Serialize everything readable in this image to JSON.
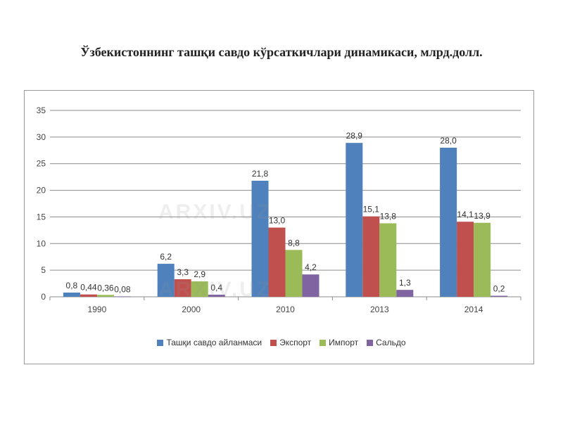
{
  "title": "Ўзбекистоннинг ташқи савдо кўрсаткичлари динамикаси, млрд.долл.",
  "watermark": "ARXIV.UZ",
  "chart_data": {
    "type": "bar",
    "categories": [
      "1990",
      "2000",
      "2010",
      "2013",
      "2014"
    ],
    "series": [
      {
        "name": "Ташқи савдо айланмаси",
        "color": "#4F81BD",
        "values": [
          0.8,
          6.2,
          21.8,
          28.9,
          28.0
        ],
        "labels": [
          "0,8",
          "6,2",
          "21,8",
          "28,9",
          "28,0"
        ]
      },
      {
        "name": "Экспорт",
        "color": "#C0504D",
        "values": [
          0.44,
          3.3,
          13.0,
          15.1,
          14.1
        ],
        "labels": [
          "0,44",
          "3,3",
          "13,0",
          "15,1",
          "14,1"
        ]
      },
      {
        "name": "Импорт",
        "color": "#9BBB59",
        "values": [
          0.36,
          2.9,
          8.8,
          13.8,
          13.9
        ],
        "labels": [
          "0,36",
          "2,9",
          "8,8",
          "13,8",
          "13,9"
        ]
      },
      {
        "name": "Сальдо",
        "color": "#8064A2",
        "values": [
          0.08,
          0.4,
          4.2,
          1.3,
          0.2
        ],
        "labels": [
          "0,08",
          "0,4",
          "4,2",
          "1,3",
          "0,2"
        ]
      }
    ],
    "yticks": [
      0,
      5,
      10,
      15,
      20,
      25,
      30,
      35
    ],
    "ylim": [
      0,
      35
    ],
    "grid": true,
    "legend_position": "bottom"
  }
}
